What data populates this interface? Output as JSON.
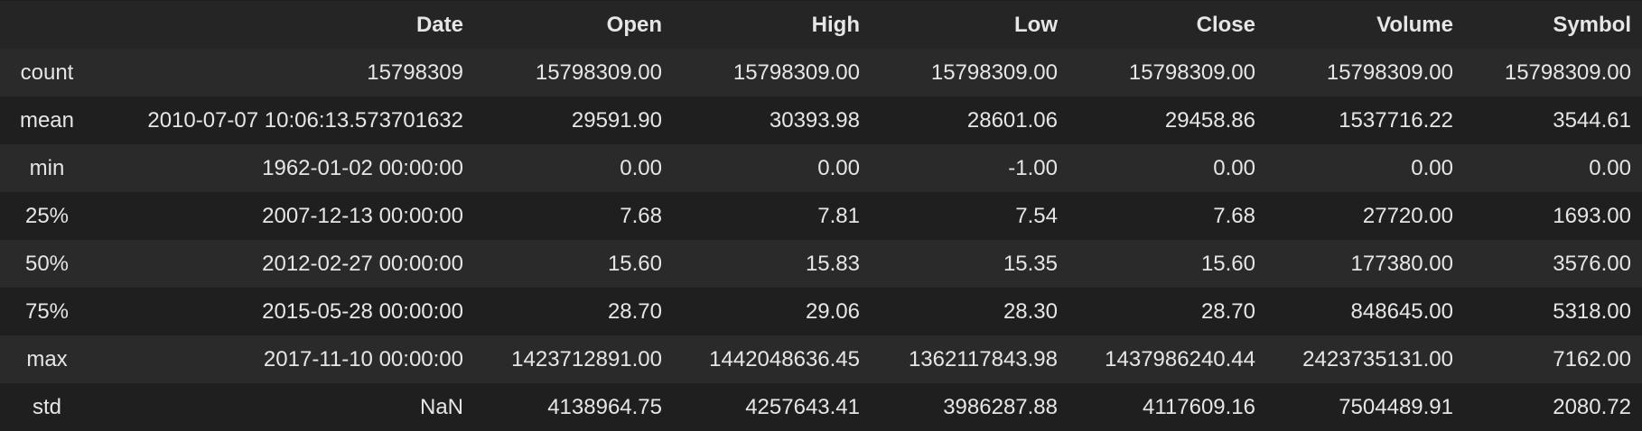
{
  "table": {
    "columns": [
      "",
      "Date",
      "Open",
      "High",
      "Low",
      "Close",
      "Volume",
      "Symbol"
    ],
    "rows": [
      [
        "count",
        "15798309",
        "15798309.00",
        "15798309.00",
        "15798309.00",
        "15798309.00",
        "15798309.00",
        "15798309.00"
      ],
      [
        "mean",
        "2010-07-07 10:06:13.573701632",
        "29591.90",
        "30393.98",
        "28601.06",
        "29458.86",
        "1537716.22",
        "3544.61"
      ],
      [
        "min",
        "1962-01-02 00:00:00",
        "0.00",
        "0.00",
        "-1.00",
        "0.00",
        "0.00",
        "0.00"
      ],
      [
        "25%",
        "2007-12-13 00:00:00",
        "7.68",
        "7.81",
        "7.54",
        "7.68",
        "27720.00",
        "1693.00"
      ],
      [
        "50%",
        "2012-02-27 00:00:00",
        "15.60",
        "15.83",
        "15.35",
        "15.60",
        "177380.00",
        "3576.00"
      ],
      [
        "75%",
        "2015-05-28 00:00:00",
        "28.70",
        "29.06",
        "28.30",
        "28.70",
        "848645.00",
        "5318.00"
      ],
      [
        "max",
        "2017-11-10 00:00:00",
        "1423712891.00",
        "1442048636.45",
        "1362117843.98",
        "1437986240.44",
        "2423735131.00",
        "7162.00"
      ],
      [
        "std",
        "NaN",
        "4138964.75",
        "4257643.41",
        "3986287.88",
        "4117609.16",
        "7504489.91",
        "2080.72"
      ]
    ]
  },
  "colors": {
    "background": "#1e1e1e",
    "row_odd": "#2a2a2a",
    "row_even": "#1f1f1f",
    "text": "#e6e6e6"
  }
}
